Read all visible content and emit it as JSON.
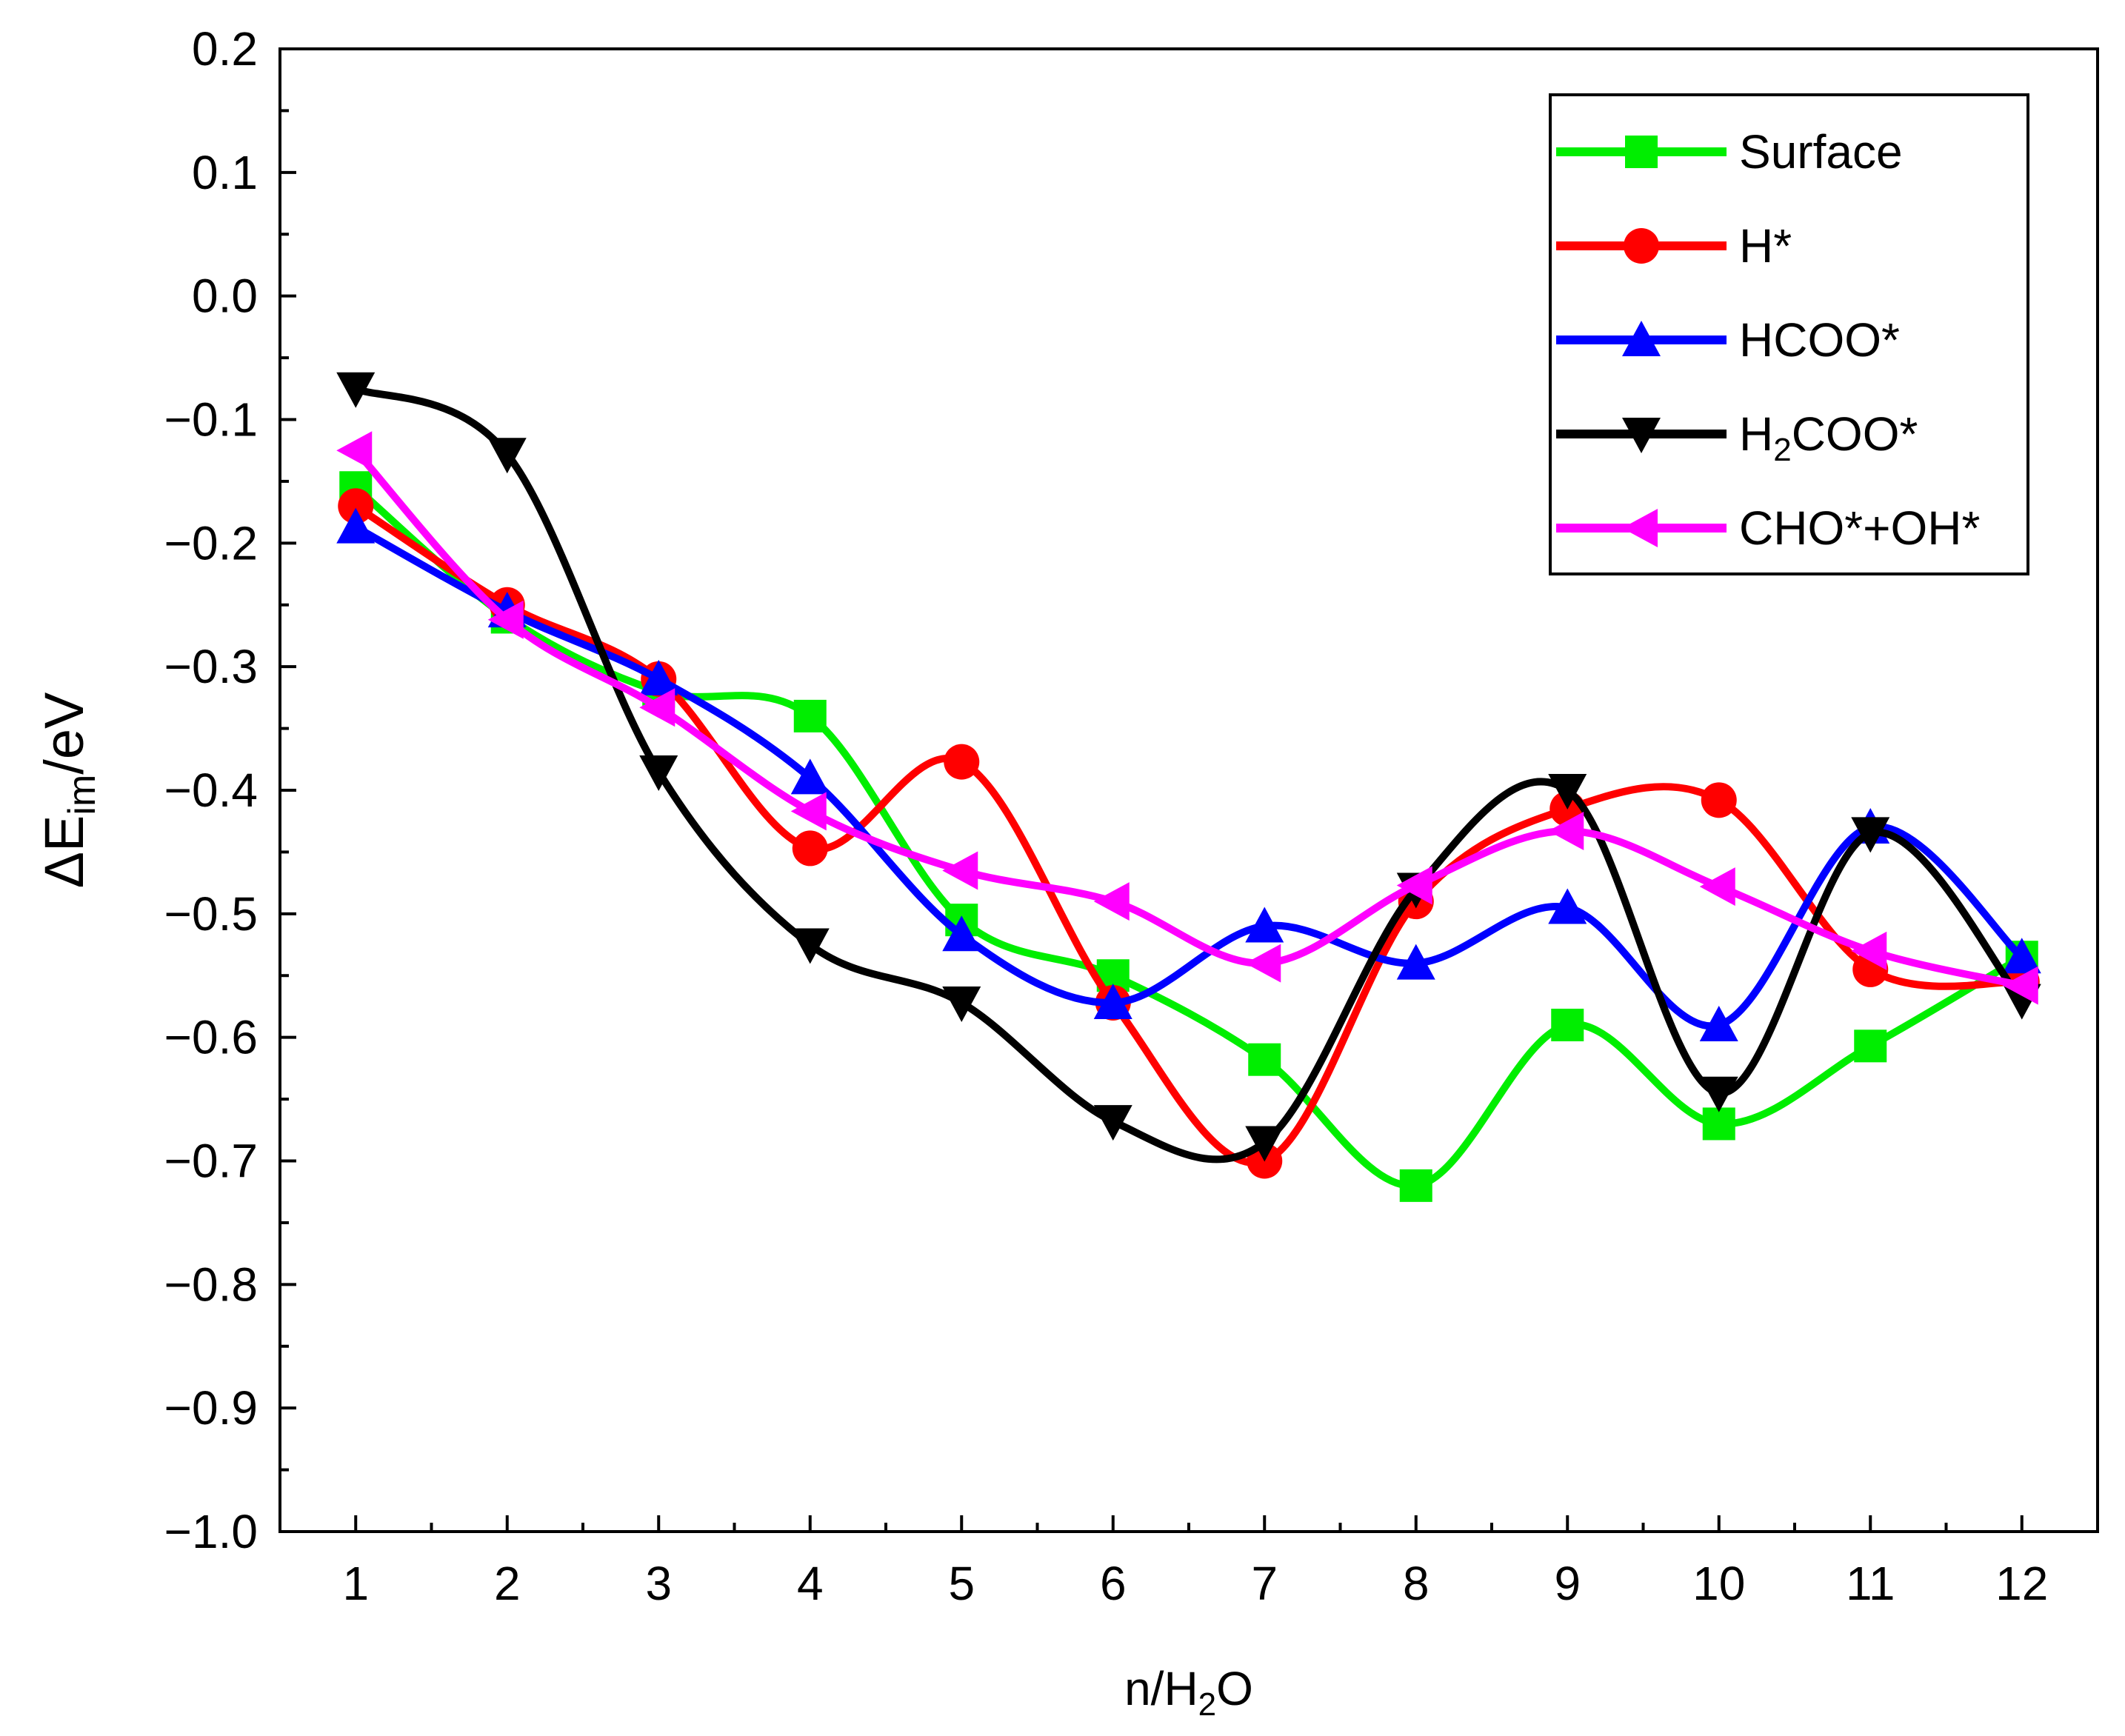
{
  "chart_data": {
    "type": "line",
    "smooth": true,
    "x": [
      1,
      2,
      3,
      4,
      5,
      6,
      7,
      8,
      9,
      10,
      11,
      12
    ],
    "xlim": [
      0.5,
      12.5
    ],
    "ylim": [
      -1.0,
      0.2
    ],
    "x_ticks": [
      "1",
      "2",
      "3",
      "4",
      "5",
      "6",
      "7",
      "8",
      "9",
      "10",
      "11",
      "12"
    ],
    "y_ticks": [
      {
        "value": 0.2,
        "label": "0.2"
      },
      {
        "value": 0.1,
        "label": "0.1"
      },
      {
        "value": 0.0,
        "label": "0.0"
      },
      {
        "value": -0.1,
        "label": "−0.1"
      },
      {
        "value": -0.2,
        "label": "−0.2"
      },
      {
        "value": -0.3,
        "label": "−0.3"
      },
      {
        "value": -0.4,
        "label": "−0.4"
      },
      {
        "value": -0.5,
        "label": "−0.5"
      },
      {
        "value": -0.6,
        "label": "−0.6"
      },
      {
        "value": -0.7,
        "label": "−0.7"
      },
      {
        "value": -0.8,
        "label": "−0.8"
      },
      {
        "value": -0.9,
        "label": "−0.9"
      },
      {
        "value": -1.0,
        "label": "−1.0"
      }
    ],
    "xlabel": {
      "main": "n/H",
      "sub": "2",
      "tail": "O"
    },
    "ylabel": {
      "main": "ΔE",
      "sub": "im",
      "tail": "/eV"
    },
    "legend_position": "top-right",
    "series": [
      {
        "name": "Surface",
        "label_main": "Surface",
        "label_sub": "",
        "label_tail": "",
        "color": "#00ee00",
        "marker": "square",
        "values": [
          -0.155,
          -0.26,
          -0.32,
          -0.34,
          -0.505,
          -0.55,
          -0.618,
          -0.72,
          -0.59,
          -0.67,
          -0.607,
          -0.535
        ]
      },
      {
        "name": "H*",
        "label_main": "H*",
        "label_sub": "",
        "label_tail": "",
        "color": "#ff0000",
        "marker": "circle",
        "values": [
          -0.17,
          -0.25,
          -0.31,
          -0.447,
          -0.377,
          -0.572,
          -0.7,
          -0.49,
          -0.415,
          -0.408,
          -0.545,
          -0.555
        ]
      },
      {
        "name": "HCOO*",
        "label_main": "HCOO*",
        "label_sub": "",
        "label_tail": "",
        "color": "#0000ff",
        "marker": "triangle-up",
        "values": [
          -0.187,
          -0.255,
          -0.31,
          -0.39,
          -0.517,
          -0.572,
          -0.51,
          -0.54,
          -0.495,
          -0.59,
          -0.43,
          -0.535
        ]
      },
      {
        "name": "H2COO*",
        "label_main": "H",
        "label_sub": "2",
        "label_tail": "COO*",
        "color": "#000000",
        "marker": "triangle-down",
        "values": [
          -0.075,
          -0.128,
          -0.385,
          -0.525,
          -0.572,
          -0.668,
          -0.685,
          -0.48,
          -0.4,
          -0.645,
          -0.435,
          -0.57
        ]
      },
      {
        "name": "CHO*+OH*",
        "label_main": "CHO*+OH*",
        "label_sub": "",
        "label_tail": "",
        "color": "#ff00ff",
        "marker": "triangle-left",
        "values": [
          -0.125,
          -0.262,
          -0.333,
          -0.417,
          -0.465,
          -0.49,
          -0.54,
          -0.477,
          -0.433,
          -0.478,
          -0.53,
          -0.558
        ]
      }
    ]
  }
}
